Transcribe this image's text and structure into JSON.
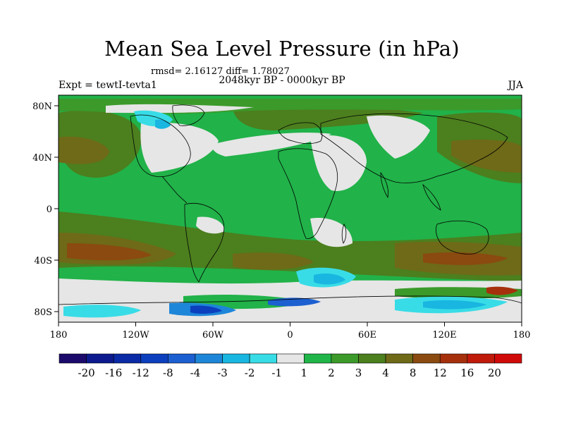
{
  "title": "Mean Sea Level Pressure (in hPa)",
  "stats_text": "rmsd= 2.16127 diff= 1.78027",
  "expt_label": "Expt = tewtI-tevta1",
  "period_label": "2048kyr BP - 0000kyr BP",
  "season_label": "JJA",
  "map": {
    "lon_range": [
      -180,
      180
    ],
    "lat_range": [
      -90,
      90
    ],
    "lat_ticks": [
      "80N",
      "40N",
      "0",
      "40S",
      "80S"
    ],
    "lon_ticks": [
      "180",
      "120W",
      "60W",
      "0",
      "60E",
      "120E",
      "180"
    ]
  },
  "colorbar": {
    "labels": [
      "-20",
      "-16",
      "-12",
      "-8",
      "-4",
      "-3",
      "-2",
      "-1",
      "1",
      "2",
      "3",
      "4",
      "8",
      "12",
      "16",
      "20"
    ],
    "colors": [
      "#1b0a6b",
      "#0c1a8e",
      "#0a2aa6",
      "#0c3fbd",
      "#1c5fd0",
      "#1e86d8",
      "#18b6e0",
      "#38dce6",
      "#e6e6e6",
      "#1fb548",
      "#3b9a2a",
      "#4c7f1e",
      "#6e6a18",
      "#8a4a10",
      "#a6300c",
      "#c01a0a",
      "#d00a08"
    ]
  },
  "colors": {
    "land_outline": "#000000",
    "base_fill": "#21b249"
  }
}
